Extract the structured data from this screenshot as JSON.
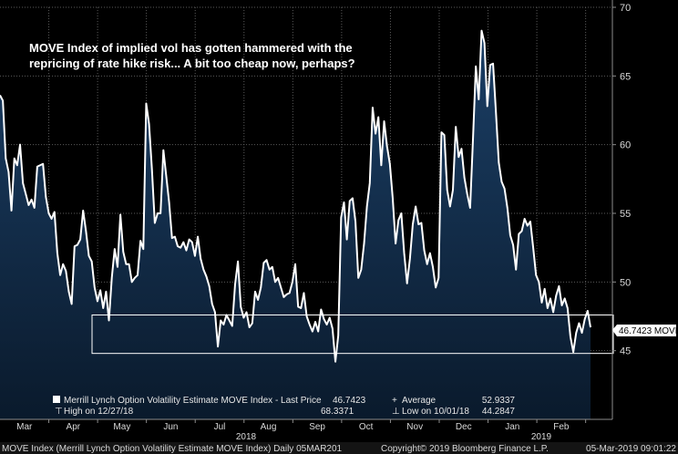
{
  "chart_data": {
    "type": "area",
    "annotation": [
      "MOVE Index of implied vol has gotten hammered with the",
      "repricing of rate hike risk... A bit too cheap now, perhaps?"
    ],
    "ylim": [
      40,
      70
    ],
    "y_ticks": [
      45,
      50,
      55,
      60,
      65,
      70
    ],
    "months": [
      "Mar",
      "Apr",
      "May",
      "Jun",
      "Jul",
      "Aug",
      "Sep",
      "Oct",
      "Nov",
      "Dec",
      "Jan",
      "Feb"
    ],
    "years": [
      "2018",
      "2019"
    ],
    "highlight_band": [
      44.8,
      47.6
    ],
    "last_price_label": "46.7423 MOVE",
    "legend": {
      "series_name": "Merrill Lynch Option Volatility Estimate MOVE Index - Last Price",
      "last_price": "46.7423",
      "average_label": "Average",
      "average_value": "52.9337",
      "high_label": "High on 12/27/18",
      "high_value": "68.3371",
      "low_label": "Low on 10/01/18",
      "low_value": "44.2847"
    },
    "colors": {
      "line": "#ffffff",
      "fill_top": "#1b3f66",
      "fill_bottom": "#0a1a2c",
      "grid": "#5a5a5a",
      "band": "#ffffff"
    },
    "values": [
      63.6,
      63.2,
      59,
      58,
      55.2,
      59,
      58.5,
      60,
      57.2,
      56.4,
      55.6,
      56,
      55.4,
      58.4,
      58.5,
      58.6,
      56.2,
      55,
      54.6,
      55.1,
      52.1,
      50.5,
      51.3,
      50.8,
      49.3,
      48.4,
      52.6,
      52.7,
      53.1,
      55.2,
      53.7,
      51.9,
      51.5,
      49.6,
      48.6,
      49.4,
      48.1,
      49.3,
      47.2,
      50.3,
      52.4,
      51.1,
      54.9,
      52.2,
      51.3,
      51.3,
      50,
      50.3,
      50.5,
      53,
      52.4,
      63,
      61.5,
      58.2,
      54.3,
      55,
      55,
      59.6,
      57.7,
      55.8,
      53.2,
      53.3,
      52.6,
      52.5,
      52.9,
      52.3,
      53.1,
      52.9,
      51.9,
      53.3,
      51.7,
      50.9,
      50.4,
      49.7,
      48.4,
      47.8,
      45.3,
      47.2,
      46.9,
      47.6,
      47.2,
      46.8,
      49.8,
      51.5,
      48.2,
      47.4,
      47.8,
      46.7,
      47,
      49.3,
      48.7,
      49.6,
      51.4,
      51.6,
      50.9,
      51.1,
      50,
      50.3,
      49.6,
      48.9,
      49.1,
      49.2,
      50,
      51.3,
      48.2,
      48.1,
      49.2,
      47.5,
      46.9,
      46.4,
      47.1,
      46.4,
      48,
      47.3,
      46.9,
      47.4,
      46.6,
      44.2,
      46.1,
      54.7,
      55.8,
      53.1,
      55.9,
      56.1,
      54.4,
      50.3,
      50.9,
      52.8,
      55.5,
      57.2,
      62.7,
      60.8,
      62,
      58.5,
      61.7,
      59.9,
      58.6,
      56.1,
      52.8,
      54.5,
      55,
      52.1,
      49.9,
      51.7,
      54.2,
      55.5,
      54.2,
      54.3,
      52.3,
      51.3,
      52.1,
      51.1,
      49.6,
      50.3,
      60.9,
      60.7,
      56.7,
      55.5,
      56.7,
      61.3,
      59.1,
      59.7,
      57.6,
      56.4,
      55.4,
      60.4,
      65.7,
      63.3,
      68.3,
      67.4,
      62.8,
      65.8,
      65.9,
      62.4,
      58.7,
      57.3,
      56.8,
      55.4,
      53.4,
      52.7,
      50.9,
      53.5,
      53.7,
      54.6,
      54.1,
      54.4,
      52.5,
      50.5,
      50,
      48.5,
      49.5,
      48.1,
      48.8,
      47.8,
      49,
      49.7,
      48.3,
      48.8,
      48.1,
      46,
      44.9,
      46.3,
      47,
      46.3,
      47.3,
      47.9,
      46.7
    ]
  },
  "footer": {
    "left": "MOVE Index (Merrill Lynch Option Volatility Estimate MOVE Index)  Daily 05MAR201",
    "middle": "Copyright© 2019 Bloomberg Finance L.P.",
    "right": "05-Mar-2019 09:01:22"
  }
}
